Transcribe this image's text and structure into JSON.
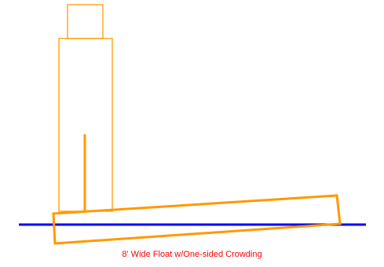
{
  "caption": "8' Wide Float w/One-sided Crowding",
  "colors": {
    "structure": "#ff9900",
    "water_line": "#0000ff",
    "caption": "#ff0000",
    "background": "#ffffff"
  }
}
